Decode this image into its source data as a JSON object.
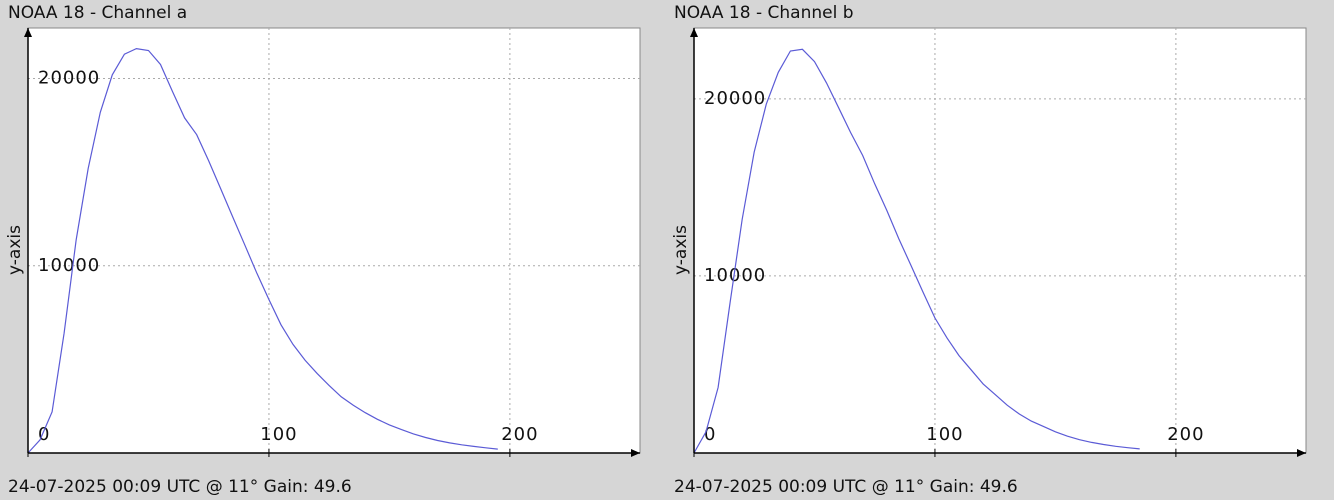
{
  "chart_data": [
    {
      "type": "line",
      "title": "NOAA 18 - Channel a",
      "y_label": "y-axis",
      "caption": "24-07-2025 00:09 UTC @ 11° Gain: 49.6",
      "x": [
        0,
        5,
        10,
        15,
        20,
        25,
        30,
        35,
        40,
        45,
        50,
        55,
        60,
        65,
        70,
        75,
        80,
        85,
        90,
        95,
        100,
        105,
        110,
        115,
        120,
        125,
        130,
        135,
        140,
        145,
        150,
        155,
        160,
        165,
        170,
        175,
        180,
        185,
        190,
        195
      ],
      "series": [
        {
          "name": "Channel a",
          "color": "#5b5bd6",
          "values": [
            0,
            700,
            2200,
            6400,
            11400,
            15200,
            18200,
            20200,
            21300,
            21600,
            21500,
            20750,
            19300,
            17900,
            17000,
            15600,
            14100,
            12600,
            11100,
            9600,
            8200,
            6850,
            5800,
            4950,
            4250,
            3600,
            3000,
            2550,
            2150,
            1800,
            1500,
            1250,
            1020,
            830,
            670,
            540,
            440,
            350,
            280,
            210
          ]
        }
      ],
      "xlim": [
        0,
        254
      ],
      "ylim": [
        0,
        22700
      ],
      "xticks": [
        0,
        100,
        200
      ],
      "yticks": [
        10000,
        20000
      ],
      "grid": true
    },
    {
      "type": "line",
      "title": "NOAA 18 - Channel b",
      "y_label": "y-axis",
      "caption": "24-07-2025 00:09 UTC @ 11° Gain: 49.6",
      "x": [
        0,
        5,
        10,
        15,
        20,
        25,
        30,
        35,
        40,
        45,
        50,
        55,
        60,
        65,
        70,
        75,
        80,
        85,
        90,
        95,
        100,
        105,
        110,
        115,
        120,
        125,
        130,
        135,
        140,
        145,
        150,
        155,
        160,
        165,
        170,
        175,
        180,
        185
      ],
      "series": [
        {
          "name": "Channel b",
          "color": "#5b5bd6",
          "values": [
            0,
            1200,
            3700,
            8500,
            13200,
            17000,
            19700,
            21500,
            22700,
            22800,
            22100,
            20900,
            19500,
            18100,
            16800,
            15200,
            13700,
            12100,
            10600,
            9100,
            7630,
            6500,
            5500,
            4700,
            3900,
            3300,
            2700,
            2200,
            1800,
            1500,
            1200,
            950,
            750,
            600,
            480,
            380,
            300,
            230
          ]
        }
      ],
      "xlim": [
        0,
        254
      ],
      "ylim": [
        0,
        24000
      ],
      "xticks": [
        0,
        100,
        200
      ],
      "yticks": [
        10000,
        20000
      ],
      "grid": true
    }
  ]
}
